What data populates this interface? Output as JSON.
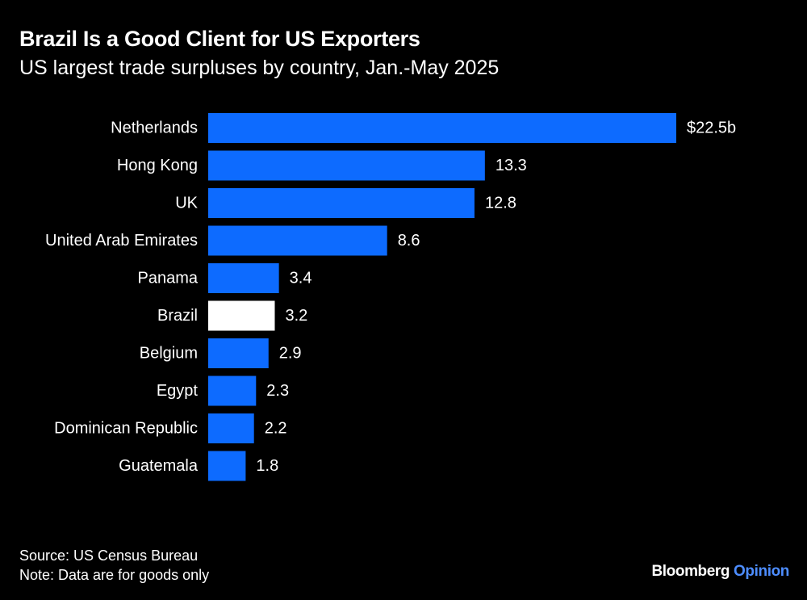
{
  "header": {
    "title": "Brazil Is a Good Client for US Exporters",
    "subtitle": "US largest trade surpluses by country, Jan.-May 2025"
  },
  "chart_data": {
    "type": "bar",
    "orientation": "horizontal",
    "title": "Brazil Is a Good Client for US Exporters",
    "subtitle": "US largest trade surpluses by country, Jan.-May 2025",
    "xlabel": "",
    "ylabel": "",
    "unit": "$ billions",
    "xlim": [
      0,
      22.5
    ],
    "grid": false,
    "categories": [
      "Netherlands",
      "Hong Kong",
      "UK",
      "United Arab Emirates",
      "Panama",
      "Brazil",
      "Belgium",
      "Egypt",
      "Dominican Republic",
      "Guatemala"
    ],
    "values": [
      22.5,
      13.3,
      12.8,
      8.6,
      3.4,
      3.2,
      2.9,
      2.3,
      2.2,
      1.8
    ],
    "value_labels": [
      "$22.5b",
      "13.3",
      "12.8",
      "8.6",
      "3.4",
      "3.2",
      "2.9",
      "2.3",
      "2.2",
      "1.8"
    ],
    "highlight": "Brazil",
    "colors": {
      "bar": "#0d6bff",
      "highlight": "#ffffff",
      "background": "#000000",
      "text": "#ffffff"
    }
  },
  "footer": {
    "source": "Source: US Census Bureau",
    "note": "Note: Data are for goods only",
    "brand_main": "Bloomberg",
    "brand_accent": "Opinion"
  }
}
